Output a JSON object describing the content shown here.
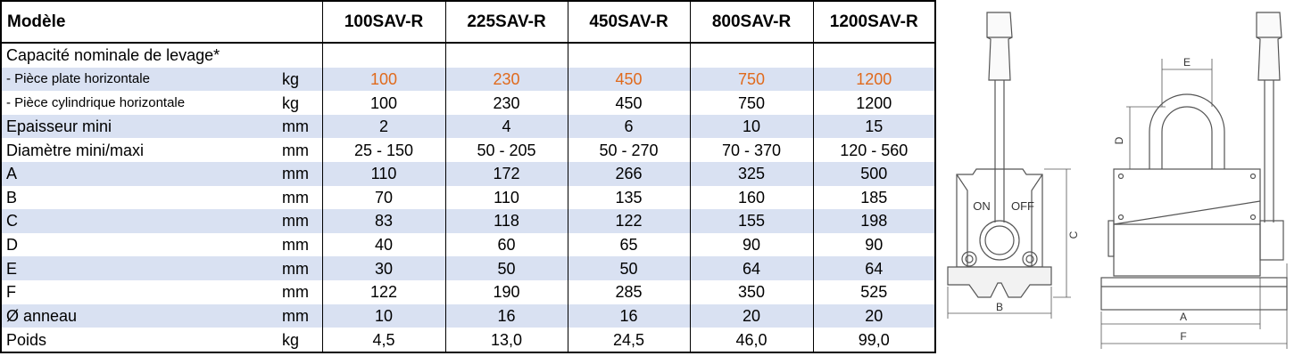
{
  "table": {
    "header": {
      "model_label": "Modèle",
      "models": [
        "100SAV-R",
        "225SAV-R",
        "450SAV-R",
        "800SAV-R",
        "1200SAV-R"
      ]
    },
    "rows": [
      {
        "label": "Capacité nominale de levage*",
        "unit": "",
        "values": [
          "",
          "",
          "",
          "",
          ""
        ],
        "shaded": false,
        "small": false,
        "highlight": false
      },
      {
        "label": "- Pièce plate horizontale",
        "unit": "kg",
        "values": [
          "100",
          "230",
          "450",
          "750",
          "1200"
        ],
        "shaded": true,
        "small": true,
        "highlight": true
      },
      {
        "label": "- Pièce cylindrique horizontale",
        "unit": "kg",
        "values": [
          "100",
          "230",
          "450",
          "750",
          "1200"
        ],
        "shaded": false,
        "small": true,
        "highlight": false
      },
      {
        "label": "Epaisseur mini",
        "unit": "mm",
        "values": [
          "2",
          "4",
          "6",
          "10",
          "15"
        ],
        "shaded": true,
        "small": false,
        "highlight": false
      },
      {
        "label": "Diamètre mini/maxi",
        "unit": "mm",
        "values": [
          "25 - 150",
          "50 - 205",
          "50 - 270",
          "70 - 370",
          "120 - 560"
        ],
        "shaded": false,
        "small": false,
        "highlight": false
      },
      {
        "label": "A",
        "unit": "mm",
        "values": [
          "110",
          "172",
          "266",
          "325",
          "500"
        ],
        "shaded": true,
        "small": false,
        "highlight": false
      },
      {
        "label": "B",
        "unit": "mm",
        "values": [
          "70",
          "110",
          "135",
          "160",
          "185"
        ],
        "shaded": false,
        "small": false,
        "highlight": false
      },
      {
        "label": "C",
        "unit": "mm",
        "values": [
          "83",
          "118",
          "122",
          "155",
          "198"
        ],
        "shaded": true,
        "small": false,
        "highlight": false
      },
      {
        "label": "D",
        "unit": "mm",
        "values": [
          "40",
          "60",
          "65",
          "90",
          "90"
        ],
        "shaded": false,
        "small": false,
        "highlight": false
      },
      {
        "label": "E",
        "unit": "mm",
        "values": [
          "30",
          "50",
          "50",
          "64",
          "64"
        ],
        "shaded": true,
        "small": false,
        "highlight": false
      },
      {
        "label": "F",
        "unit": "mm",
        "values": [
          "122",
          "190",
          "285",
          "350",
          "525"
        ],
        "shaded": false,
        "small": false,
        "highlight": false
      },
      {
        "label": "Ø anneau",
        "unit": "mm",
        "values": [
          "10",
          "16",
          "16",
          "20",
          "20"
        ],
        "shaded": true,
        "small": false,
        "highlight": false
      },
      {
        "label": "Poids",
        "unit": "kg",
        "values": [
          "4,5",
          "13,0",
          "24,5",
          "46,0",
          "99,0"
        ],
        "shaded": false,
        "small": false,
        "highlight": false
      }
    ]
  },
  "drawings": {
    "side_view": {
      "label_on": "ON",
      "label_off": "OFF",
      "dim_b": "B",
      "dim_c": "C"
    },
    "front_view": {
      "dim_a": "A",
      "dim_d": "D",
      "dim_e": "E",
      "dim_f": "F"
    }
  },
  "colors": {
    "row_shade": "#d9e1f2",
    "highlight_text": "#e06a1c"
  }
}
